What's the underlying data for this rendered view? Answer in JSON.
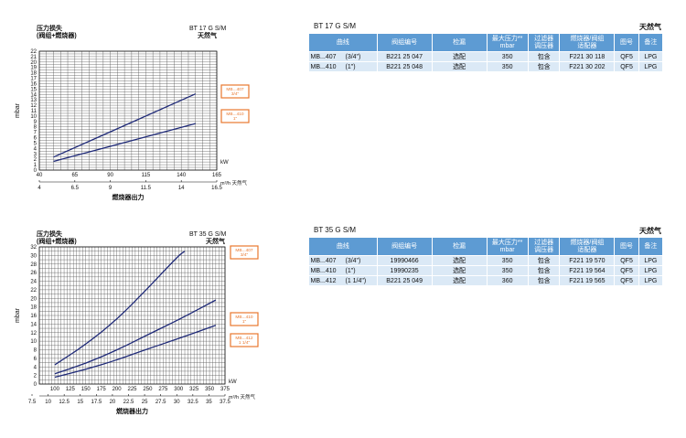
{
  "chart_data": [
    {
      "type": "line",
      "title": "压力损失\n(阀组+燃烧器)",
      "model": "BT 17 G S/M",
      "fuel": "天然气",
      "ylabel": "mbar",
      "xlabel": "燃烧器出力",
      "kw_label": "kW",
      "m3h_label": "m³/h 天然气",
      "ylim": [
        0,
        22
      ],
      "yticks": [
        0,
        1,
        2,
        3,
        4,
        5,
        6,
        7,
        8,
        9,
        10,
        11,
        12,
        13,
        14,
        15,
        16,
        17,
        18,
        19,
        20,
        21,
        22
      ],
      "xlim_kw": [
        40,
        165
      ],
      "x_kw_ticks": [
        "40",
        "65",
        "90",
        "115",
        "140",
        "165"
      ],
      "x_m3h_ticks": [
        "4",
        "6.5",
        "9",
        "11.5",
        "14",
        "16.5"
      ],
      "grid": true,
      "series": [
        {
          "name": "MB...407\n3/4\"",
          "x": [
            50,
            150
          ],
          "y": [
            2.4,
            14.1
          ]
        },
        {
          "name": "MB...410\n1\"",
          "x": [
            50,
            150
          ],
          "y": [
            1.6,
            8.6
          ]
        }
      ]
    },
    {
      "type": "line",
      "title": "压力损失\n(阀组+燃烧器)",
      "model": "BT 35 G S/M",
      "fuel": "天然气",
      "ylabel": "mbar",
      "xlabel": "燃烧器出力",
      "kw_label": "kW",
      "m3h_label": "m³/h 天然气",
      "ylim": [
        0,
        32
      ],
      "yticks": [
        0,
        2,
        4,
        6,
        8,
        10,
        12,
        14,
        16,
        18,
        20,
        22,
        24,
        26,
        28,
        30,
        32
      ],
      "xlim_kw": [
        75,
        375
      ],
      "x_kw_ticks": [
        "100",
        "125",
        "150",
        "175",
        "200",
        "225",
        "250",
        "275",
        "300",
        "325",
        "350",
        "375"
      ],
      "x_m3h_ticks": [
        "7.5",
        "10",
        "12.5",
        "15",
        "17.5",
        "20",
        "22.5",
        "25",
        "27.5",
        "30",
        "32.5",
        "35",
        "37.5"
      ],
      "grid": true,
      "series": [
        {
          "name": "MB...407\n3/4\"",
          "x": [
            100,
            150,
            200,
            250,
            300,
            310
          ],
          "y": [
            4.5,
            9.2,
            15.0,
            22.3,
            30.0,
            31.0
          ]
        },
        {
          "name": "MB...410\n1\"",
          "x": [
            100,
            150,
            200,
            250,
            300,
            360
          ],
          "y": [
            2.4,
            4.8,
            7.9,
            11.5,
            15.0,
            19.6
          ]
        },
        {
          "name": "MB...412\n1 1/4\"",
          "x": [
            100,
            150,
            200,
            250,
            300,
            360
          ],
          "y": [
            1.6,
            3.4,
            5.6,
            8.2,
            10.6,
            13.7
          ]
        }
      ]
    }
  ],
  "tables": [
    {
      "model": "BT 17 G S/M",
      "fuel": "天然气",
      "headers": [
        "曲线",
        "阀组编号",
        "检漏",
        "最大压力**\nmbar",
        "过滤器\n调压器",
        "燃烧器/阀组\n适配器",
        "图号",
        "备注"
      ],
      "rows": [
        [
          "MB...407",
          "(3/4\")",
          "B221 25 047",
          "选配",
          "350",
          "包含",
          "F221 30 118",
          "QF5",
          "LPG"
        ],
        [
          "MB...410",
          "(1\")",
          "B221 25 048",
          "选配",
          "350",
          "包含",
          "F221 30 202",
          "QF5",
          "LPG"
        ]
      ]
    },
    {
      "model": "BT 35 G S/M",
      "fuel": "天然气",
      "headers": [
        "曲线",
        "阀组编号",
        "检漏",
        "最大压力**\nmbar",
        "过滤器\n调压器",
        "燃烧器/阀组\n适配器",
        "图号",
        "备注"
      ],
      "rows": [
        [
          "MB...407",
          "(3/4\")",
          "19990466",
          "选配",
          "350",
          "包含",
          "F221 19 570",
          "QF5",
          "LPG"
        ],
        [
          "MB...410",
          "(1\")",
          "19990235",
          "选配",
          "350",
          "包含",
          "F221 19 564",
          "QF5",
          "LPG"
        ],
        [
          "MB...412",
          "(1 1/4\")",
          "B221 25 049",
          "选配",
          "360",
          "包含",
          "F221 19 565",
          "QF5",
          "LPG"
        ]
      ]
    }
  ],
  "colors": {
    "curve": "#1f2a78",
    "label_border": "#e8772e",
    "label_bg": "#e8772e",
    "table_header": "#5d9bd3",
    "table_row": "#dbe9f6"
  }
}
